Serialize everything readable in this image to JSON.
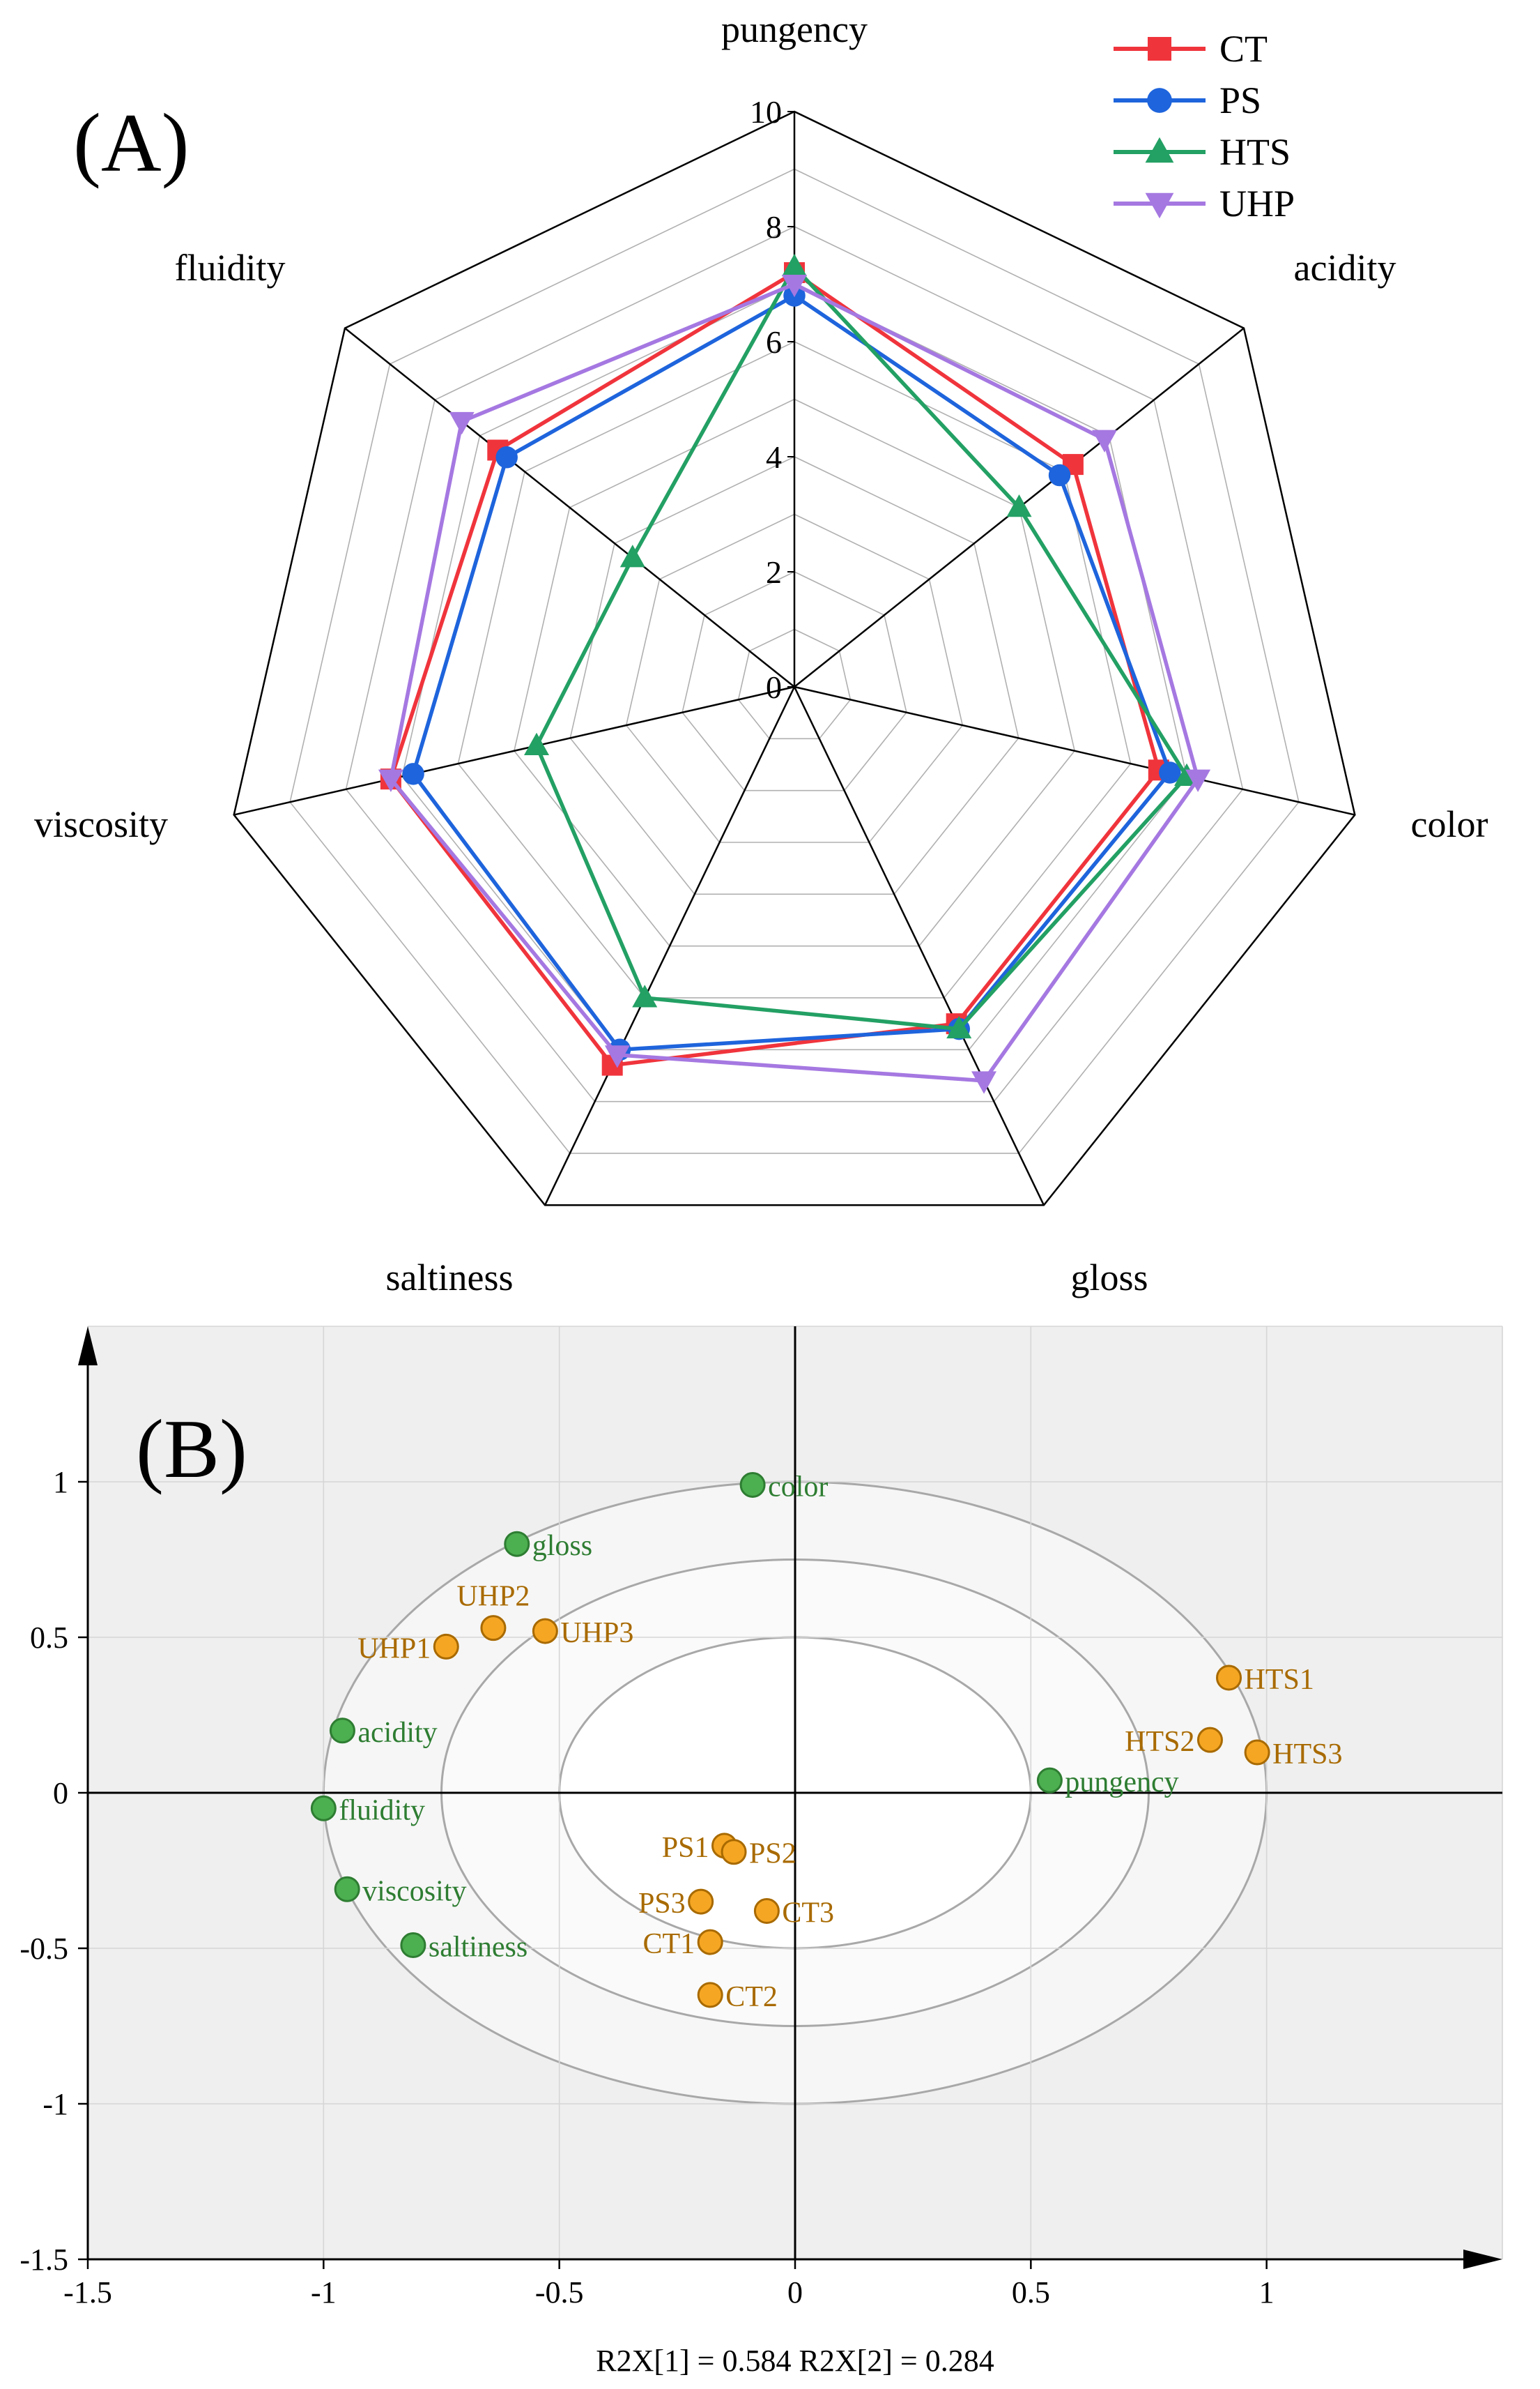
{
  "chart_data": [
    {
      "type": "radar",
      "panel_label": "(A)",
      "axes": [
        "pungency",
        "acidity",
        "color",
        "gloss",
        "saltiness",
        "viscosity",
        "fluidity"
      ],
      "rmax": 10,
      "ticks": [
        "0",
        "2",
        "4",
        "6",
        "8",
        "10"
      ],
      "grid": true,
      "legend_position": "top-right",
      "series": [
        {
          "name": "CT",
          "color": "#f0343c",
          "marker": "square",
          "values": [
            7.2,
            6.2,
            6.5,
            6.5,
            7.3,
            7.2,
            6.6
          ]
        },
        {
          "name": "PS",
          "color": "#1e64dc",
          "marker": "circle",
          "values": [
            6.8,
            5.9,
            6.7,
            6.6,
            7.0,
            6.8,
            6.4
          ]
        },
        {
          "name": "HTS",
          "color": "#23a064",
          "marker": "triangle-up",
          "values": [
            7.3,
            5.0,
            7.0,
            6.6,
            6.0,
            4.6,
            3.6
          ]
        },
        {
          "name": "UHP",
          "color": "#a578e1",
          "marker": "triangle-down",
          "values": [
            7.0,
            6.9,
            7.2,
            7.6,
            7.1,
            7.2,
            7.4
          ]
        }
      ]
    },
    {
      "type": "scatter",
      "panel_label": "(B)",
      "xlabel": "R2X[1] = 0.584 R2X[2] = 0.284",
      "xlim": [
        -1.5,
        1.5
      ],
      "ylim": [
        -1.5,
        1.5
      ],
      "xticks": [
        "-1.5",
        "-1",
        "-0.5",
        "0",
        "0.5",
        "1"
      ],
      "yticks": [
        "-1.5",
        "-1",
        "-0.5",
        "0",
        "0.5",
        "1"
      ],
      "grid": true,
      "ellipse_radii": [
        0.5,
        0.75,
        1.0
      ],
      "attribute_color": "#2e7d32",
      "attribute_fill": "#4caf50",
      "sample_color": "#a86a00",
      "sample_fill": "#f5a623",
      "attributes": [
        {
          "label": "color",
          "x": -0.09,
          "y": 0.99
        },
        {
          "label": "gloss",
          "x": -0.59,
          "y": 0.8
        },
        {
          "label": "acidity",
          "x": -0.96,
          "y": 0.2
        },
        {
          "label": "fluidity",
          "x": -1.0,
          "y": -0.05
        },
        {
          "label": "viscosity",
          "x": -0.95,
          "y": -0.31
        },
        {
          "label": "saltiness",
          "x": -0.81,
          "y": -0.49
        },
        {
          "label": "pungency",
          "x": 0.54,
          "y": 0.04
        }
      ],
      "samples": [
        {
          "label": "UHP1",
          "x": -0.74,
          "y": 0.47,
          "anchor": "left"
        },
        {
          "label": "UHP2",
          "x": -0.64,
          "y": 0.53,
          "anchor": "above"
        },
        {
          "label": "UHP3",
          "x": -0.53,
          "y": 0.52,
          "anchor": "right"
        },
        {
          "label": "HTS1",
          "x": 0.92,
          "y": 0.37,
          "anchor": "right"
        },
        {
          "label": "HTS2",
          "x": 0.88,
          "y": 0.17,
          "anchor": "left"
        },
        {
          "label": "HTS3",
          "x": 0.98,
          "y": 0.13,
          "anchor": "right"
        },
        {
          "label": "PS1",
          "x": -0.15,
          "y": -0.17,
          "anchor": "left"
        },
        {
          "label": "PS2",
          "x": -0.13,
          "y": -0.19,
          "anchor": "right"
        },
        {
          "label": "PS3",
          "x": -0.2,
          "y": -0.35,
          "anchor": "left"
        },
        {
          "label": "CT1",
          "x": -0.18,
          "y": -0.48,
          "anchor": "left"
        },
        {
          "label": "CT2",
          "x": -0.18,
          "y": -0.65,
          "anchor": "right"
        },
        {
          "label": "CT3",
          "x": -0.06,
          "y": -0.38,
          "anchor": "right"
        }
      ]
    }
  ]
}
